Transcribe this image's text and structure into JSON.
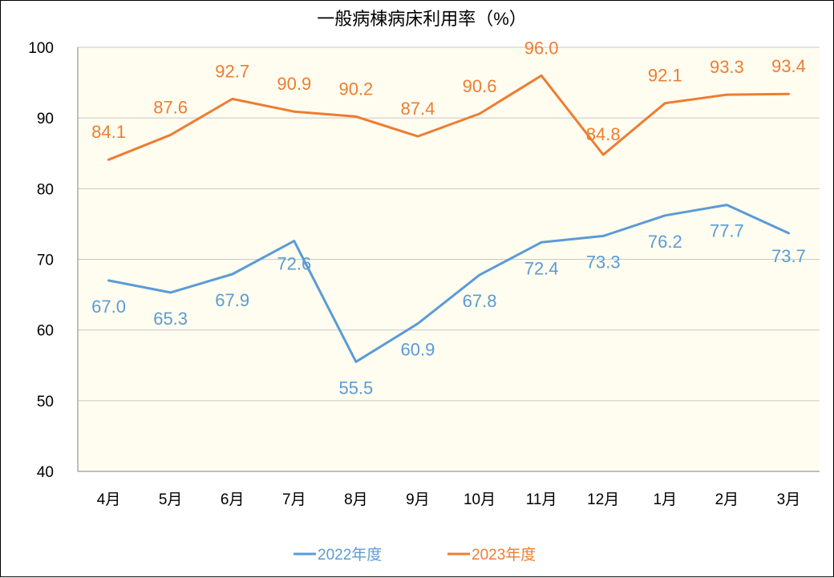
{
  "chart_data": {
    "type": "line",
    "title": "一般病棟病床利用率（%）",
    "categories": [
      "4月",
      "5月",
      "6月",
      "7月",
      "8月",
      "9月",
      "10月",
      "11月",
      "12月",
      "1月",
      "2月",
      "3月"
    ],
    "ylim": [
      40,
      100
    ],
    "yticks": [
      40,
      50,
      60,
      70,
      80,
      90,
      100
    ],
    "grid": true,
    "legend": "bottom",
    "plot_background": "#FFFDF0",
    "series": [
      {
        "name": "2022年度",
        "color": "#5B9BD5",
        "values": [
          67.0,
          65.3,
          67.9,
          72.6,
          55.5,
          60.9,
          67.8,
          72.4,
          73.3,
          76.2,
          77.7,
          73.7
        ],
        "labels": [
          "67.0",
          "65.3",
          "67.9",
          "72.6",
          "55.5",
          "60.9",
          "67.8",
          "72.4",
          "73.3",
          "76.2",
          "77.7",
          "73.7"
        ]
      },
      {
        "name": "2023年度",
        "color": "#ED7D31",
        "values": [
          84.1,
          87.6,
          92.7,
          90.9,
          90.2,
          87.4,
          90.6,
          96.0,
          84.8,
          92.1,
          93.3,
          93.4
        ],
        "labels": [
          "84.1",
          "87.6",
          "92.7",
          "90.9",
          "90.2",
          "87.4",
          "90.6",
          "96.0",
          "84.8",
          "92.1",
          "93.3",
          "93.4"
        ]
      }
    ]
  }
}
